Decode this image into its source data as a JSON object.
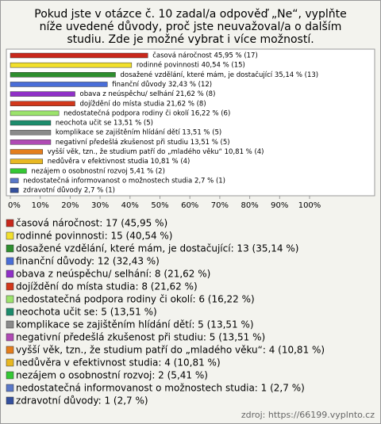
{
  "chart_data": {
    "type": "bar",
    "orientation": "horizontal",
    "title": "Pokud jste v otázce č. 10 zadal/a odpověď „Ne“, vyplňte níže uvedené důvody, proč jste neuvažoval/a o dalším studiu. Zde je možné vybrat i více možností.",
    "values": [
      45.95,
      40.54,
      35.14,
      32.43,
      21.62,
      21.62,
      16.22,
      13.51,
      13.51,
      13.51,
      10.81,
      10.81,
      5.41,
      2.7,
      2.7
    ],
    "value_labels": [
      "časová náročnost 45,95 % (17)",
      "rodinné povinnosti 40,54 % (15)",
      "dosažené vzdělání, které mám, je dostačující 35,14 % (13)",
      "finanční důvody 32,43 % (12)",
      "obava z neúspěchu/ selhání 21,62 % (8)",
      "dojíždění do místa studia 21,62 % (8)",
      "nedostatečná podpora rodiny či okolí 16,22 % (6)",
      "neochota učit se 13,51 % (5)",
      "komplikace se zajištěním hlídání dětí 13,51 % (5)",
      "negativní předešlá zkušenost při studiu 13,51 % (5)",
      "vyšší věk, tzn., že studium patří do „mladého věku“ 10,81 % (4)",
      "nedůvěra v efektivnost studia 10,81 % (4)",
      "nezájem o osobnostní rozvoj 5,41 % (2)",
      "nedostatečná informovanost o možnostech studia 2,7 % (1)",
      "zdravotní důvody 2,7 % (1)"
    ],
    "legend": [
      "časová náročnost: 17 (45,95 %)",
      "rodinné povinnosti: 15 (40,54 %)",
      "dosažené vzdělání, které mám, je dostačující: 13 (35,14 %)",
      "finanční důvody: 12 (32,43 %)",
      "obava z neúspěchu/ selhání: 8 (21,62 %)",
      "dojíždění do místa studia: 8 (21,62 %)",
      "nedostatečná podpora rodiny či okolí: 6 (16,22 %)",
      "neochota učit se: 5 (13,51 %)",
      "komplikace se zajištěním hlídání dětí: 5 (13,51 %)",
      "negativní předešlá zkušenost při studiu: 5 (13,51 %)",
      "vyšší věk, tzn., že studium patří do „mladého věku“: 4 (10,81 %)",
      "nedůvěra v efektivnost studia: 4 (10,81 %)",
      "nezájem o osobnostní rozvoj: 2 (5,41 %)",
      "nedostatečná informovanost o možnostech studia: 1 (2,7 %)",
      "zdravotní důvody: 1 (2,7 %)"
    ],
    "colors": [
      "#c8281c",
      "#f2e02c",
      "#2f8f2f",
      "#4a6ed8",
      "#9030c8",
      "#d2381c",
      "#9ce36c",
      "#1c8c6c",
      "#8a8a8a",
      "#b04ab4",
      "#e47e1c",
      "#e8b822",
      "#34c834",
      "#5a78c8",
      "#34509e"
    ],
    "xlim": [
      0,
      100
    ],
    "xticks": [
      {
        "value": 0,
        "label": "0%"
      },
      {
        "value": 10,
        "label": "10%"
      },
      {
        "value": 20,
        "label": "20%"
      },
      {
        "value": 30,
        "label": "30%"
      },
      {
        "value": 40,
        "label": "40%"
      },
      {
        "value": 50,
        "label": "50%"
      },
      {
        "value": 60,
        "label": "60%"
      },
      {
        "value": 70,
        "label": "70%"
      },
      {
        "value": 80,
        "label": "80%"
      },
      {
        "value": 90,
        "label": "90%"
      },
      {
        "value": 100,
        "label": "100%"
      }
    ],
    "source": "zdroj: https://66199.vyplnto.cz"
  }
}
